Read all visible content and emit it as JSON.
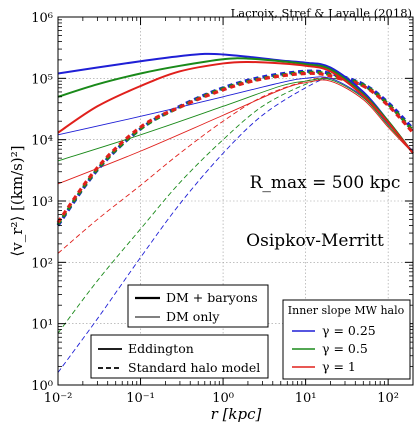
{
  "chart_data": {
    "type": "line",
    "credit": "Lacroix, Stref & Lavalle (2018)",
    "xlabel": "r [kpc]",
    "ylabel": "⟨v_r²⟩ [(km/s)²]",
    "x_scale": "log",
    "y_scale": "log",
    "xlim": [
      0.01,
      200
    ],
    "ylim": [
      1,
      1000000
    ],
    "x_ticks": [
      "10⁻²",
      "10⁻¹",
      "10⁰",
      "10¹",
      "10²"
    ],
    "y_ticks": [
      "10⁰",
      "10¹",
      "10²",
      "10³",
      "10⁴",
      "10⁵",
      "10⁶"
    ],
    "annotations": {
      "rmax": "R_max = 500 kpc",
      "model": "Osipkov-Merritt"
    },
    "legend_mass": [
      "DM + baryons",
      "DM only"
    ],
    "legend_method": [
      "Eddington",
      "Standard halo model"
    ],
    "legend_slope_title": "Inner slope MW halo",
    "legend_slope": [
      {
        "label": "γ = 0.25",
        "color": "#1f1fd6"
      },
      {
        "label": "γ = 0.5",
        "color": "#1a8a1a"
      },
      {
        "label": "γ = 1",
        "color": "#e0201c"
      }
    ],
    "series": [
      {
        "gamma": "0.25",
        "color": "#1f1fd6",
        "mass": "DM + baryons",
        "method": "Eddington",
        "x": [
          0.01,
          0.03,
          0.1,
          0.3,
          0.6,
          1,
          2,
          5,
          10,
          20,
          50,
          100,
          200
        ],
        "y": [
          120000,
          150000,
          190000,
          230000,
          250000,
          245000,
          225000,
          195000,
          180000,
          150000,
          60000,
          20000,
          6000
        ]
      },
      {
        "gamma": "0.5",
        "color": "#1a8a1a",
        "mass": "DM + baryons",
        "method": "Eddington",
        "x": [
          0.01,
          0.03,
          0.1,
          0.3,
          1,
          2,
          5,
          10,
          20,
          50,
          100,
          200
        ],
        "y": [
          50000,
          80000,
          120000,
          160000,
          205000,
          210000,
          190000,
          170000,
          140000,
          55000,
          20000,
          6000
        ]
      },
      {
        "gamma": "1",
        "color": "#e0201c",
        "mass": "DM + baryons",
        "method": "Eddington",
        "x": [
          0.01,
          0.03,
          0.1,
          0.3,
          1,
          2,
          5,
          10,
          20,
          50,
          100,
          200
        ],
        "y": [
          13000,
          35000,
          75000,
          130000,
          175000,
          185000,
          175000,
          160000,
          130000,
          52000,
          19000,
          6000
        ]
      },
      {
        "gamma": "0.25",
        "color": "#1f1fd6",
        "mass": "DM only",
        "method": "Eddington",
        "x": [
          0.01,
          0.1,
          1,
          5,
          10,
          20,
          50,
          100,
          200
        ],
        "y": [
          12000,
          24000,
          50000,
          85000,
          100000,
          100000,
          50000,
          18000,
          6500
        ]
      },
      {
        "gamma": "0.5",
        "color": "#1a8a1a",
        "mass": "DM only",
        "method": "Eddington",
        "x": [
          0.01,
          0.1,
          1,
          5,
          10,
          20,
          50,
          100,
          200
        ],
        "y": [
          4500,
          12000,
          35000,
          75000,
          90000,
          95000,
          48000,
          17000,
          6200
        ]
      },
      {
        "gamma": "1",
        "color": "#e0201c",
        "mass": "DM only",
        "method": "Eddington",
        "x": [
          0.01,
          0.1,
          1,
          5,
          10,
          20,
          50,
          100,
          200
        ],
        "y": [
          1900,
          6500,
          25000,
          65000,
          85000,
          90000,
          45000,
          16000,
          6000
        ]
      },
      {
        "gamma": "0.25",
        "color": "#1f1fd6",
        "mass": "DM + baryons",
        "method": "Standard halo model",
        "x": [
          0.01,
          0.03,
          0.1,
          0.3,
          1,
          3,
          10,
          20,
          50,
          100,
          200
        ],
        "y": [
          400,
          3200,
          15000,
          35000,
          70000,
          105000,
          130000,
          120000,
          80000,
          40000,
          15000
        ]
      },
      {
        "gamma": "0.5",
        "color": "#1a8a1a",
        "mass": "DM + baryons",
        "method": "Standard halo model",
        "x": [
          0.01,
          0.03,
          0.1,
          0.3,
          1,
          3,
          10,
          20,
          50,
          100,
          200
        ],
        "y": [
          420,
          3300,
          15000,
          34000,
          68000,
          100000,
          125000,
          115000,
          78000,
          38000,
          14000
        ]
      },
      {
        "gamma": "1",
        "color": "#e0201c",
        "mass": "DM + baryons",
        "method": "Standard halo model",
        "x": [
          0.01,
          0.03,
          0.1,
          0.3,
          1,
          3,
          10,
          20,
          50,
          100,
          200
        ],
        "y": [
          450,
          3500,
          16000,
          34000,
          65000,
          98000,
          120000,
          110000,
          75000,
          36000,
          13000
        ]
      },
      {
        "gamma": "0.25",
        "color": "#1f1fd6",
        "mass": "DM only",
        "method": "Standard halo model",
        "x": [
          0.01,
          0.03,
          0.1,
          0.3,
          1,
          3,
          10,
          20,
          50,
          100,
          200
        ],
        "y": [
          1.6,
          12,
          120,
          900,
          6000,
          25000,
          70000,
          100000,
          75000,
          38000,
          14000
        ]
      },
      {
        "gamma": "0.5",
        "color": "#1a8a1a",
        "mass": "DM only",
        "method": "Standard halo model",
        "x": [
          0.01,
          0.03,
          0.1,
          0.3,
          1,
          3,
          10,
          20,
          50,
          100,
          200
        ],
        "y": [
          7,
          50,
          350,
          2000,
          10000,
          35000,
          80000,
          100000,
          74000,
          37000,
          14000
        ]
      },
      {
        "gamma": "1",
        "color": "#e0201c",
        "mass": "DM only",
        "method": "Standard halo model",
        "x": [
          0.01,
          0.03,
          0.1,
          0.3,
          1,
          3,
          10,
          20,
          50,
          100,
          200
        ],
        "y": [
          140,
          500,
          1800,
          6000,
          20000,
          50000,
          90000,
          100000,
          72000,
          36000,
          13000
        ]
      }
    ]
  }
}
